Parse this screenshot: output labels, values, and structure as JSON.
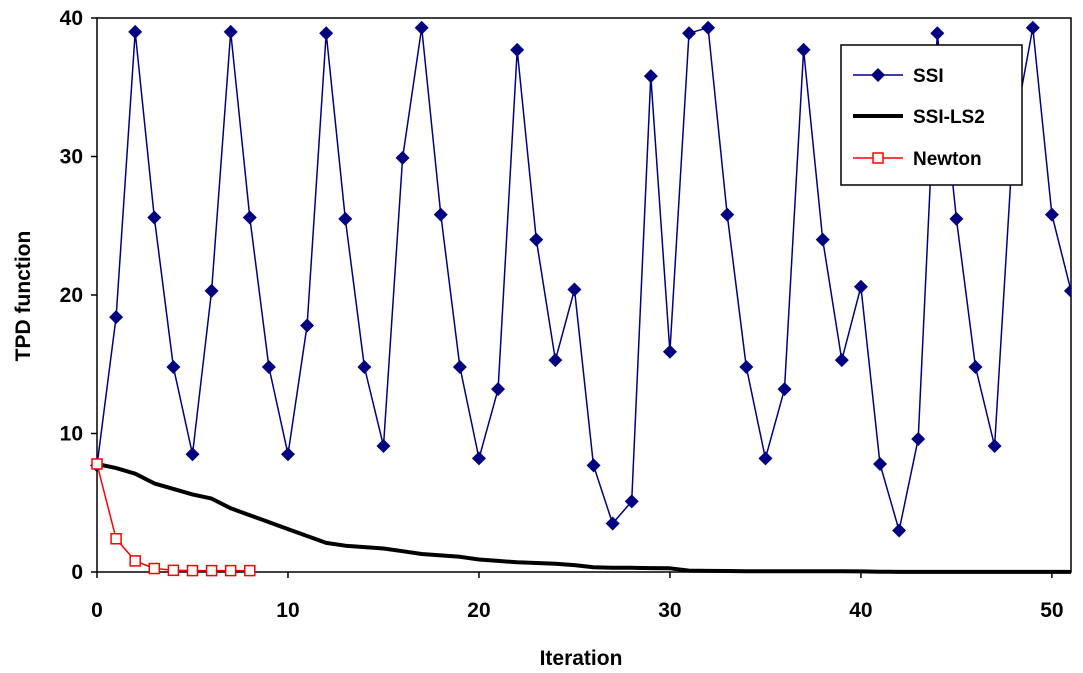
{
  "chart_data": {
    "type": "line",
    "title": "",
    "xlabel": "Iteration",
    "ylabel": "TPD function",
    "xlim": [
      0,
      51
    ],
    "ylim": [
      0,
      40
    ],
    "x_ticks": [
      0,
      10,
      20,
      30,
      40,
      50
    ],
    "y_ticks": [
      0,
      10,
      20,
      30,
      40
    ],
    "grid": false,
    "legend_position": "top-right",
    "series": [
      {
        "name": "SSI",
        "color": "#000080",
        "marker": "diamond",
        "x": [
          0,
          1,
          2,
          3,
          4,
          5,
          6,
          7,
          8,
          9,
          10,
          11,
          12,
          13,
          14,
          15,
          16,
          17,
          18,
          19,
          20,
          21,
          22,
          23,
          24,
          25,
          26,
          27,
          28,
          29,
          30,
          31,
          32,
          33,
          34,
          35,
          36,
          37,
          38,
          39,
          40,
          41,
          42,
          43,
          44,
          45,
          46,
          47,
          48,
          49,
          50,
          51
        ],
        "values": [
          7.7,
          18.4,
          39.0,
          25.6,
          14.8,
          8.5,
          20.3,
          39.0,
          25.6,
          14.8,
          8.5,
          17.8,
          38.9,
          25.5,
          14.8,
          9.1,
          29.9,
          39.3,
          25.8,
          14.8,
          8.2,
          13.2,
          37.7,
          24.0,
          15.3,
          20.4,
          7.7,
          3.5,
          5.1,
          35.8,
          15.9,
          38.9,
          39.3,
          25.8,
          14.8,
          8.2,
          13.2,
          37.7,
          24.0,
          15.3,
          20.6,
          7.8,
          3.0,
          9.6,
          38.9,
          25.5,
          14.8,
          9.1,
          31.8,
          39.3,
          25.8,
          20.3
        ]
      },
      {
        "name": "SSI-LS2",
        "color": "#000000",
        "marker": "none",
        "x": [
          0,
          1,
          2,
          3,
          4,
          5,
          6,
          7,
          8,
          9,
          10,
          11,
          12,
          13,
          14,
          15,
          16,
          17,
          18,
          19,
          20,
          21,
          22,
          23,
          24,
          25,
          26,
          27,
          28,
          29,
          30,
          31,
          32,
          33,
          34,
          35,
          36,
          37,
          38,
          39,
          40,
          41,
          42,
          43,
          44,
          45,
          46,
          47,
          48,
          49,
          50,
          51
        ],
        "values": [
          7.8,
          7.5,
          7.1,
          6.4,
          6.0,
          5.6,
          5.3,
          4.6,
          4.1,
          3.6,
          3.1,
          2.6,
          2.1,
          1.9,
          1.8,
          1.7,
          1.5,
          1.3,
          1.2,
          1.1,
          0.9,
          0.8,
          0.7,
          0.65,
          0.6,
          0.5,
          0.35,
          0.3,
          0.3,
          0.28,
          0.27,
          0.1,
          0.08,
          0.07,
          0.06,
          0.05,
          0.05,
          0.05,
          0.05,
          0.05,
          0.04,
          0.02,
          0.01,
          0.01,
          0.01,
          0.01,
          0.01,
          0.01,
          0.01,
          0.01,
          0.01,
          0.01
        ]
      },
      {
        "name": "Newton",
        "color": "#ff0000",
        "marker": "square",
        "x": [
          0,
          1,
          2,
          3,
          4,
          5,
          6,
          7,
          8
        ],
        "values": [
          7.8,
          2.4,
          0.8,
          0.25,
          0.12,
          0.1,
          0.1,
          0.1,
          0.1
        ]
      }
    ]
  }
}
